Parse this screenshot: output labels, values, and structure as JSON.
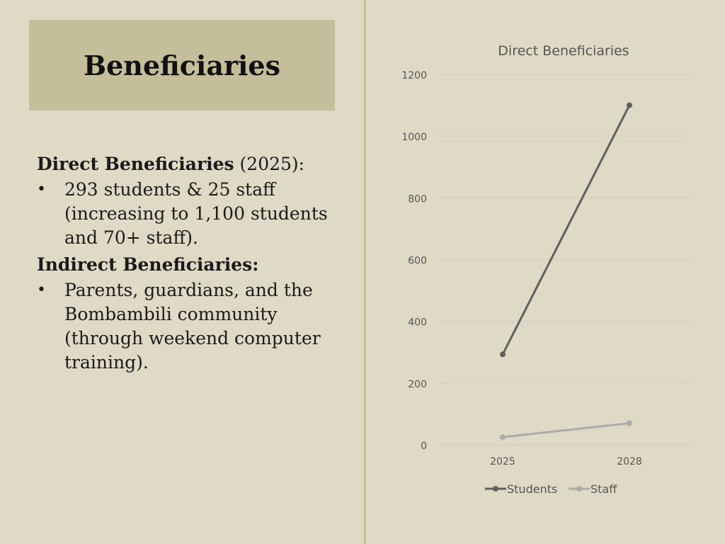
{
  "slide": {
    "title": "Beneficiaries",
    "direct_heading": "Direct Beneficiaries",
    "direct_year": " (2025):",
    "direct_bullet": "293 students & 25 staff (increasing to 1,100 students and 70+ staff).",
    "indirect_heading": "Indirect Beneficiaries:",
    "indirect_bullet": "Parents, guardians, and the Bombambili community (through weekend computer training).",
    "bullet_glyph": "•"
  },
  "chart_data": {
    "type": "line",
    "title": "Direct Beneficiaries",
    "categories": [
      "2025",
      "2028"
    ],
    "series": [
      {
        "name": "Students",
        "values": [
          293,
          1100
        ],
        "color": "#5f5f5f"
      },
      {
        "name": "Staff",
        "values": [
          25,
          70
        ],
        "color": "#ababab"
      }
    ],
    "ylim": [
      0,
      1200
    ],
    "yticks": [
      0,
      200,
      400,
      600,
      800,
      1000,
      1200
    ],
    "grid": true,
    "legend": "bottom"
  }
}
